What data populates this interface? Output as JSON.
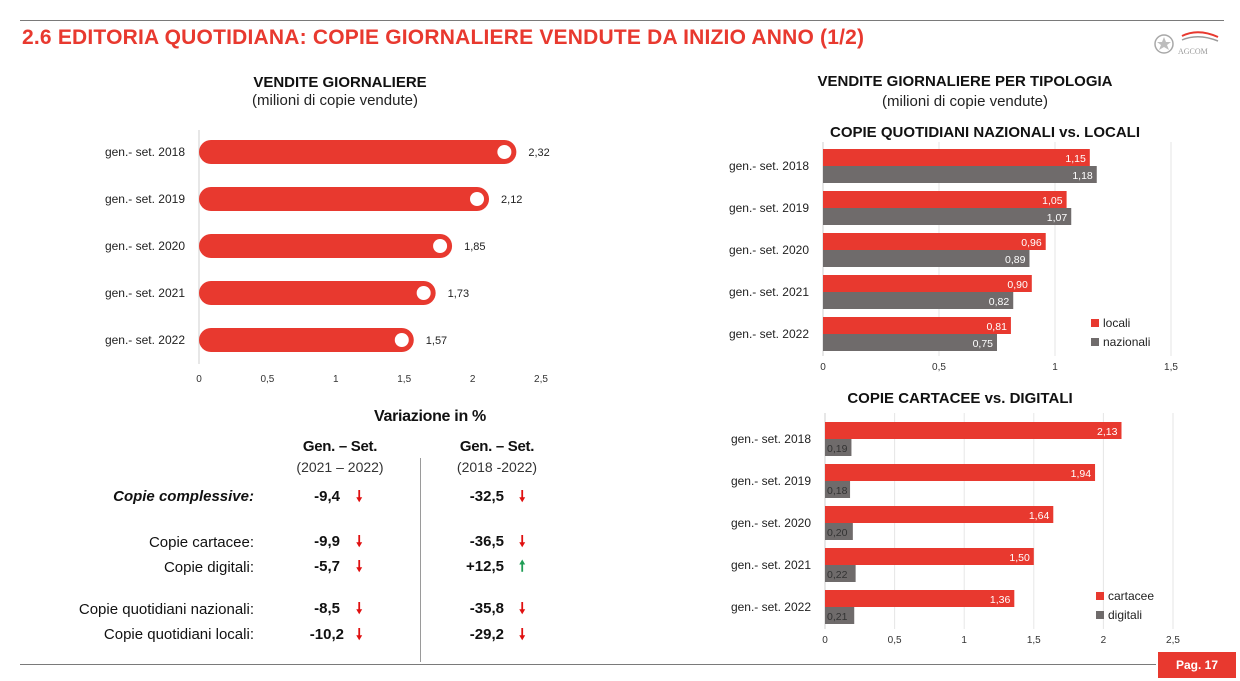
{
  "page_title": "2.6 EDITORIA QUOTIDIANA: COPIE GIORNALIERE VENDUTE DA INIZIO ANNO (1/2)",
  "logo_text": "AGCOM",
  "page_number": "Pag. 17",
  "colors": {
    "red": "#e8392f",
    "grey": "#6f6b6b",
    "down": "#e01010",
    "up": "#1f9d55"
  },
  "left_chart": {
    "title": "VENDITE GIORNALIERE",
    "subtitle": "(milioni di copie vendute)"
  },
  "right_section": {
    "title": "VENDITE GIORNALIERE PER TIPOLOGIA",
    "subtitle": "(milioni di copie vendute)"
  },
  "chart_data": [
    {
      "id": "vendite",
      "type": "bar",
      "orientation": "horizontal",
      "title": "VENDITE GIORNALIERE",
      "subtitle": "(milioni di copie vendute)",
      "categories": [
        "gen.- set. 2018",
        "gen.- set. 2019",
        "gen.- set. 2020",
        "gen.- set. 2021",
        "gen.- set. 2022"
      ],
      "series": [
        {
          "values": [
            2.32,
            2.12,
            1.85,
            1.73,
            1.57
          ]
        }
      ],
      "value_labels": [
        "2,32",
        "2,12",
        "1,85",
        "1,73",
        "1,57"
      ],
      "xlim": [
        0,
        2.5
      ],
      "xticks": [
        "0",
        "0,5",
        "1",
        "1,5",
        "2",
        "2,5"
      ],
      "xtick_values": [
        0,
        0.5,
        1,
        1.5,
        2,
        2.5
      ],
      "color": "#e8392f"
    },
    {
      "id": "nazionali_locali",
      "type": "bar",
      "orientation": "horizontal",
      "title": "COPIE QUOTIDIANI NAZIONALI vs. LOCALI",
      "categories": [
        "gen.- set. 2018",
        "gen.- set. 2019",
        "gen.- set. 2020",
        "gen.- set. 2021",
        "gen.- set. 2022"
      ],
      "series": [
        {
          "name": "locali",
          "values": [
            1.15,
            1.05,
            0.96,
            0.9,
            0.81
          ],
          "labels": [
            "1,15",
            "1,05",
            "0,96",
            "0,90",
            "0,81"
          ],
          "color": "#e8392f"
        },
        {
          "name": "nazionali",
          "values": [
            1.18,
            1.07,
            0.89,
            0.82,
            0.75
          ],
          "labels": [
            "1,18",
            "1,07",
            "0,89",
            "0,82",
            "0,75"
          ],
          "color": "#6f6b6b"
        }
      ],
      "xlim": [
        0,
        1.5
      ],
      "xticks": [
        "0",
        "0,5",
        "1",
        "1,5"
      ],
      "xtick_values": [
        0,
        0.5,
        1,
        1.5
      ],
      "legend": "bottom-right"
    },
    {
      "id": "cartacee_digitali",
      "type": "bar",
      "orientation": "horizontal",
      "title": "COPIE CARTACEE vs. DIGITALI",
      "categories": [
        "gen.- set. 2018",
        "gen.- set. 2019",
        "gen.- set. 2020",
        "gen.- set. 2021",
        "gen.- set. 2022"
      ],
      "series": [
        {
          "name": "cartacee",
          "values": [
            2.13,
            1.94,
            1.64,
            1.5,
            1.36
          ],
          "labels": [
            "2,13",
            "1,94",
            "1,64",
            "1,50",
            "1,36"
          ],
          "color": "#e8392f"
        },
        {
          "name": "digitali",
          "values": [
            0.19,
            0.18,
            0.2,
            0.22,
            0.21
          ],
          "labels": [
            "0,19",
            "0,18",
            "0,20",
            "0,22",
            "0,21"
          ],
          "color": "#6f6b6b"
        }
      ],
      "xlim": [
        0,
        2.5
      ],
      "xticks": [
        "0",
        "0,5",
        "1",
        "1,5",
        "2",
        "2,5"
      ],
      "xtick_values": [
        0,
        0.5,
        1,
        1.5,
        2,
        2.5
      ],
      "legend": "bottom-right"
    }
  ],
  "variation": {
    "title": "Variazione in %",
    "col1": {
      "head": "Gen. – Set.",
      "sub": "(2021 – 2022)"
    },
    "col2": {
      "head": "Gen. – Set.",
      "sub": "(2018 -2022)"
    },
    "rows": [
      {
        "label": "Copie complessive:",
        "v1": "-9,4",
        "d1": "down",
        "v2": "-32,5",
        "d2": "down"
      },
      {
        "label": "Copie cartacee:",
        "v1": "-9,9",
        "d1": "down",
        "v2": "-36,5",
        "d2": "down"
      },
      {
        "label": "Copie digitali:",
        "v1": "-5,7",
        "d1": "down",
        "v2": "+12,5",
        "d2": "up"
      },
      {
        "label": "Copie quotidiani nazionali:",
        "v1": "-8,5",
        "d1": "down",
        "v2": "-35,8",
        "d2": "down"
      },
      {
        "label": "Copie quotidiani locali:",
        "v1": "-10,2",
        "d1": "down",
        "v2": "-29,2",
        "d2": "down"
      }
    ]
  }
}
